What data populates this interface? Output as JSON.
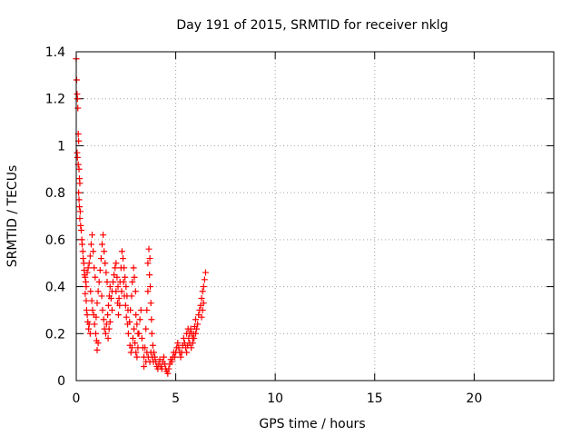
{
  "chart_data": {
    "type": "scatter",
    "title": "Day 191 of 2015, SRMTID for receiver nklg",
    "xlabel": "GPS time / hours",
    "ylabel": "SRMTID / TECUs",
    "xlim": [
      0,
      24
    ],
    "ylim": [
      0,
      1.4
    ],
    "xticks": [
      0,
      5,
      10,
      15,
      20
    ],
    "yticks": [
      0,
      0.2,
      0.4,
      0.6,
      0.8,
      1,
      1.2,
      1.4
    ],
    "xtick_labels": [
      "0",
      "5",
      "10",
      "15",
      "20"
    ],
    "ytick_labels": [
      "0",
      "0.2",
      "0.4",
      "0.6",
      "0.8",
      "1",
      "1.2",
      "1.4"
    ],
    "grid": true,
    "marker": "+",
    "series": [
      {
        "name": "SRMTID",
        "color": "#ff0000",
        "points": [
          [
            0.0,
            1.37
          ],
          [
            0.02,
            1.28
          ],
          [
            0.04,
            1.22
          ],
          [
            0.06,
            1.2
          ],
          [
            0.08,
            1.16
          ],
          [
            0.1,
            1.05
          ],
          [
            0.12,
            1.02
          ],
          [
            0.04,
            0.97
          ],
          [
            0.06,
            0.95
          ],
          [
            0.1,
            0.92
          ],
          [
            0.14,
            0.9
          ],
          [
            0.16,
            0.86
          ],
          [
            0.18,
            0.84
          ],
          [
            0.12,
            0.8
          ],
          [
            0.14,
            0.77
          ],
          [
            0.16,
            0.74
          ],
          [
            0.2,
            0.72
          ],
          [
            0.18,
            0.69
          ],
          [
            0.22,
            0.66
          ],
          [
            0.25,
            0.64
          ],
          [
            0.28,
            0.6
          ],
          [
            0.3,
            0.58
          ],
          [
            0.33,
            0.55
          ],
          [
            0.35,
            0.52
          ],
          [
            0.38,
            0.5
          ],
          [
            0.4,
            0.47
          ],
          [
            0.42,
            0.45
          ],
          [
            0.45,
            0.44
          ],
          [
            0.48,
            0.42
          ],
          [
            0.5,
            0.4
          ],
          [
            0.45,
            0.37
          ],
          [
            0.5,
            0.34
          ],
          [
            0.52,
            0.3
          ],
          [
            0.55,
            0.28
          ],
          [
            0.58,
            0.25
          ],
          [
            0.62,
            0.22
          ],
          [
            0.65,
            0.24
          ],
          [
            0.7,
            0.2
          ],
          [
            0.55,
            0.46
          ],
          [
            0.6,
            0.48
          ],
          [
            0.65,
            0.5
          ],
          [
            0.7,
            0.53
          ],
          [
            0.75,
            0.58
          ],
          [
            0.8,
            0.62
          ],
          [
            0.85,
            0.55
          ],
          [
            0.9,
            0.48
          ],
          [
            0.95,
            0.44
          ],
          [
            0.72,
            0.38
          ],
          [
            0.78,
            0.34
          ],
          [
            0.82,
            0.3
          ],
          [
            0.88,
            0.28
          ],
          [
            0.92,
            0.24
          ],
          [
            0.98,
            0.2
          ],
          [
            1.02,
            0.17
          ],
          [
            1.05,
            0.13
          ],
          [
            1.1,
            0.16
          ],
          [
            1.0,
            0.27
          ],
          [
            1.05,
            0.33
          ],
          [
            1.1,
            0.38
          ],
          [
            1.15,
            0.42
          ],
          [
            1.2,
            0.47
          ],
          [
            1.25,
            0.52
          ],
          [
            1.3,
            0.58
          ],
          [
            1.35,
            0.62
          ],
          [
            1.4,
            0.55
          ],
          [
            1.45,
            0.5
          ],
          [
            1.5,
            0.46
          ],
          [
            1.55,
            0.42
          ],
          [
            1.28,
            0.36
          ],
          [
            1.32,
            0.3
          ],
          [
            1.38,
            0.26
          ],
          [
            1.42,
            0.22
          ],
          [
            1.48,
            0.2
          ],
          [
            1.52,
            0.24
          ],
          [
            1.58,
            0.28
          ],
          [
            1.62,
            0.32
          ],
          [
            1.66,
            0.36
          ],
          [
            1.7,
            0.4
          ],
          [
            1.75,
            0.35
          ],
          [
            1.8,
            0.3
          ],
          [
            1.6,
            0.18
          ],
          [
            1.65,
            0.22
          ],
          [
            1.7,
            0.25
          ],
          [
            1.8,
            0.38
          ],
          [
            1.85,
            0.42
          ],
          [
            1.9,
            0.45
          ],
          [
            1.95,
            0.48
          ],
          [
            2.0,
            0.5
          ],
          [
            2.05,
            0.44
          ],
          [
            2.1,
            0.4
          ],
          [
            2.15,
            0.35
          ],
          [
            2.2,
            0.42
          ],
          [
            2.25,
            0.48
          ],
          [
            2.3,
            0.55
          ],
          [
            2.35,
            0.52
          ],
          [
            2.4,
            0.48
          ],
          [
            2.45,
            0.44
          ],
          [
            2.5,
            0.4
          ],
          [
            2.55,
            0.36
          ],
          [
            2.6,
            0.3
          ],
          [
            2.0,
            0.38
          ],
          [
            2.08,
            0.33
          ],
          [
            2.12,
            0.28
          ],
          [
            2.18,
            0.32
          ],
          [
            2.28,
            0.38
          ],
          [
            2.38,
            0.42
          ],
          [
            2.42,
            0.36
          ],
          [
            2.48,
            0.32
          ],
          [
            2.52,
            0.27
          ],
          [
            2.58,
            0.24
          ],
          [
            2.62,
            0.2
          ],
          [
            2.68,
            0.25
          ],
          [
            2.72,
            0.3
          ],
          [
            2.78,
            0.36
          ],
          [
            2.82,
            0.42
          ],
          [
            2.88,
            0.48
          ],
          [
            2.92,
            0.44
          ],
          [
            2.98,
            0.38
          ],
          [
            2.7,
            0.15
          ],
          [
            2.75,
            0.12
          ],
          [
            2.8,
            0.14
          ],
          [
            2.85,
            0.18
          ],
          [
            2.9,
            0.22
          ],
          [
            2.95,
            0.16
          ],
          [
            3.0,
            0.12
          ],
          [
            3.05,
            0.1
          ],
          [
            3.1,
            0.14
          ],
          [
            3.15,
            0.2
          ],
          [
            3.2,
            0.26
          ],
          [
            3.25,
            0.3
          ],
          [
            3.0,
            0.28
          ],
          [
            3.05,
            0.24
          ],
          [
            3.1,
            0.2
          ],
          [
            3.3,
            0.18
          ],
          [
            3.35,
            0.14
          ],
          [
            3.4,
            0.1
          ],
          [
            3.45,
            0.14
          ],
          [
            3.5,
            0.22
          ],
          [
            3.55,
            0.3
          ],
          [
            3.6,
            0.38
          ],
          [
            3.6,
            0.5
          ],
          [
            3.65,
            0.56
          ],
          [
            3.7,
            0.52
          ],
          [
            3.68,
            0.45
          ],
          [
            3.72,
            0.4
          ],
          [
            3.75,
            0.33
          ],
          [
            3.78,
            0.26
          ],
          [
            3.8,
            0.2
          ],
          [
            3.85,
            0.15
          ],
          [
            3.9,
            0.12
          ],
          [
            3.4,
            0.06
          ],
          [
            3.5,
            0.08
          ],
          [
            3.55,
            0.12
          ],
          [
            3.62,
            0.1
          ],
          [
            3.7,
            0.08
          ],
          [
            3.75,
            0.12
          ],
          [
            3.82,
            0.1
          ],
          [
            3.88,
            0.08
          ],
          [
            3.95,
            0.1
          ],
          [
            4.0,
            0.08
          ],
          [
            4.05,
            0.06
          ],
          [
            4.1,
            0.05
          ],
          [
            4.15,
            0.07
          ],
          [
            4.2,
            0.09
          ],
          [
            4.25,
            0.06
          ],
          [
            4.3,
            0.05
          ],
          [
            4.35,
            0.08
          ],
          [
            4.4,
            0.1
          ],
          [
            4.45,
            0.07
          ],
          [
            4.5,
            0.05
          ],
          [
            4.55,
            0.04
          ],
          [
            4.6,
            0.03
          ],
          [
            4.65,
            0.05
          ],
          [
            4.7,
            0.07
          ],
          [
            4.75,
            0.09
          ],
          [
            4.8,
            0.08
          ],
          [
            4.85,
            0.1
          ],
          [
            4.9,
            0.12
          ],
          [
            4.95,
            0.1
          ],
          [
            5.0,
            0.12
          ],
          [
            5.05,
            0.14
          ],
          [
            5.1,
            0.16
          ],
          [
            5.15,
            0.14
          ],
          [
            5.2,
            0.12
          ],
          [
            5.25,
            0.1
          ],
          [
            5.3,
            0.12
          ],
          [
            5.35,
            0.15
          ],
          [
            5.4,
            0.18
          ],
          [
            5.45,
            0.16
          ],
          [
            5.5,
            0.14
          ],
          [
            5.55,
            0.12
          ],
          [
            5.6,
            0.15
          ],
          [
            5.65,
            0.18
          ],
          [
            5.7,
            0.2
          ],
          [
            5.75,
            0.22
          ],
          [
            5.8,
            0.2
          ],
          [
            5.85,
            0.18
          ],
          [
            5.9,
            0.2
          ],
          [
            5.95,
            0.23
          ],
          [
            6.0,
            0.26
          ],
          [
            5.55,
            0.2
          ],
          [
            5.62,
            0.22
          ],
          [
            5.7,
            0.16
          ],
          [
            5.78,
            0.14
          ],
          [
            5.85,
            0.16
          ],
          [
            5.92,
            0.18
          ],
          [
            6.0,
            0.2
          ],
          [
            6.05,
            0.22
          ],
          [
            6.1,
            0.24
          ],
          [
            6.15,
            0.28
          ],
          [
            6.2,
            0.3
          ],
          [
            6.25,
            0.32
          ],
          [
            6.3,
            0.35
          ],
          [
            6.35,
            0.38
          ],
          [
            6.4,
            0.4
          ],
          [
            6.45,
            0.43
          ],
          [
            6.5,
            0.46
          ],
          [
            6.3,
            0.27
          ],
          [
            6.35,
            0.3
          ],
          [
            6.4,
            0.33
          ]
        ]
      }
    ]
  }
}
